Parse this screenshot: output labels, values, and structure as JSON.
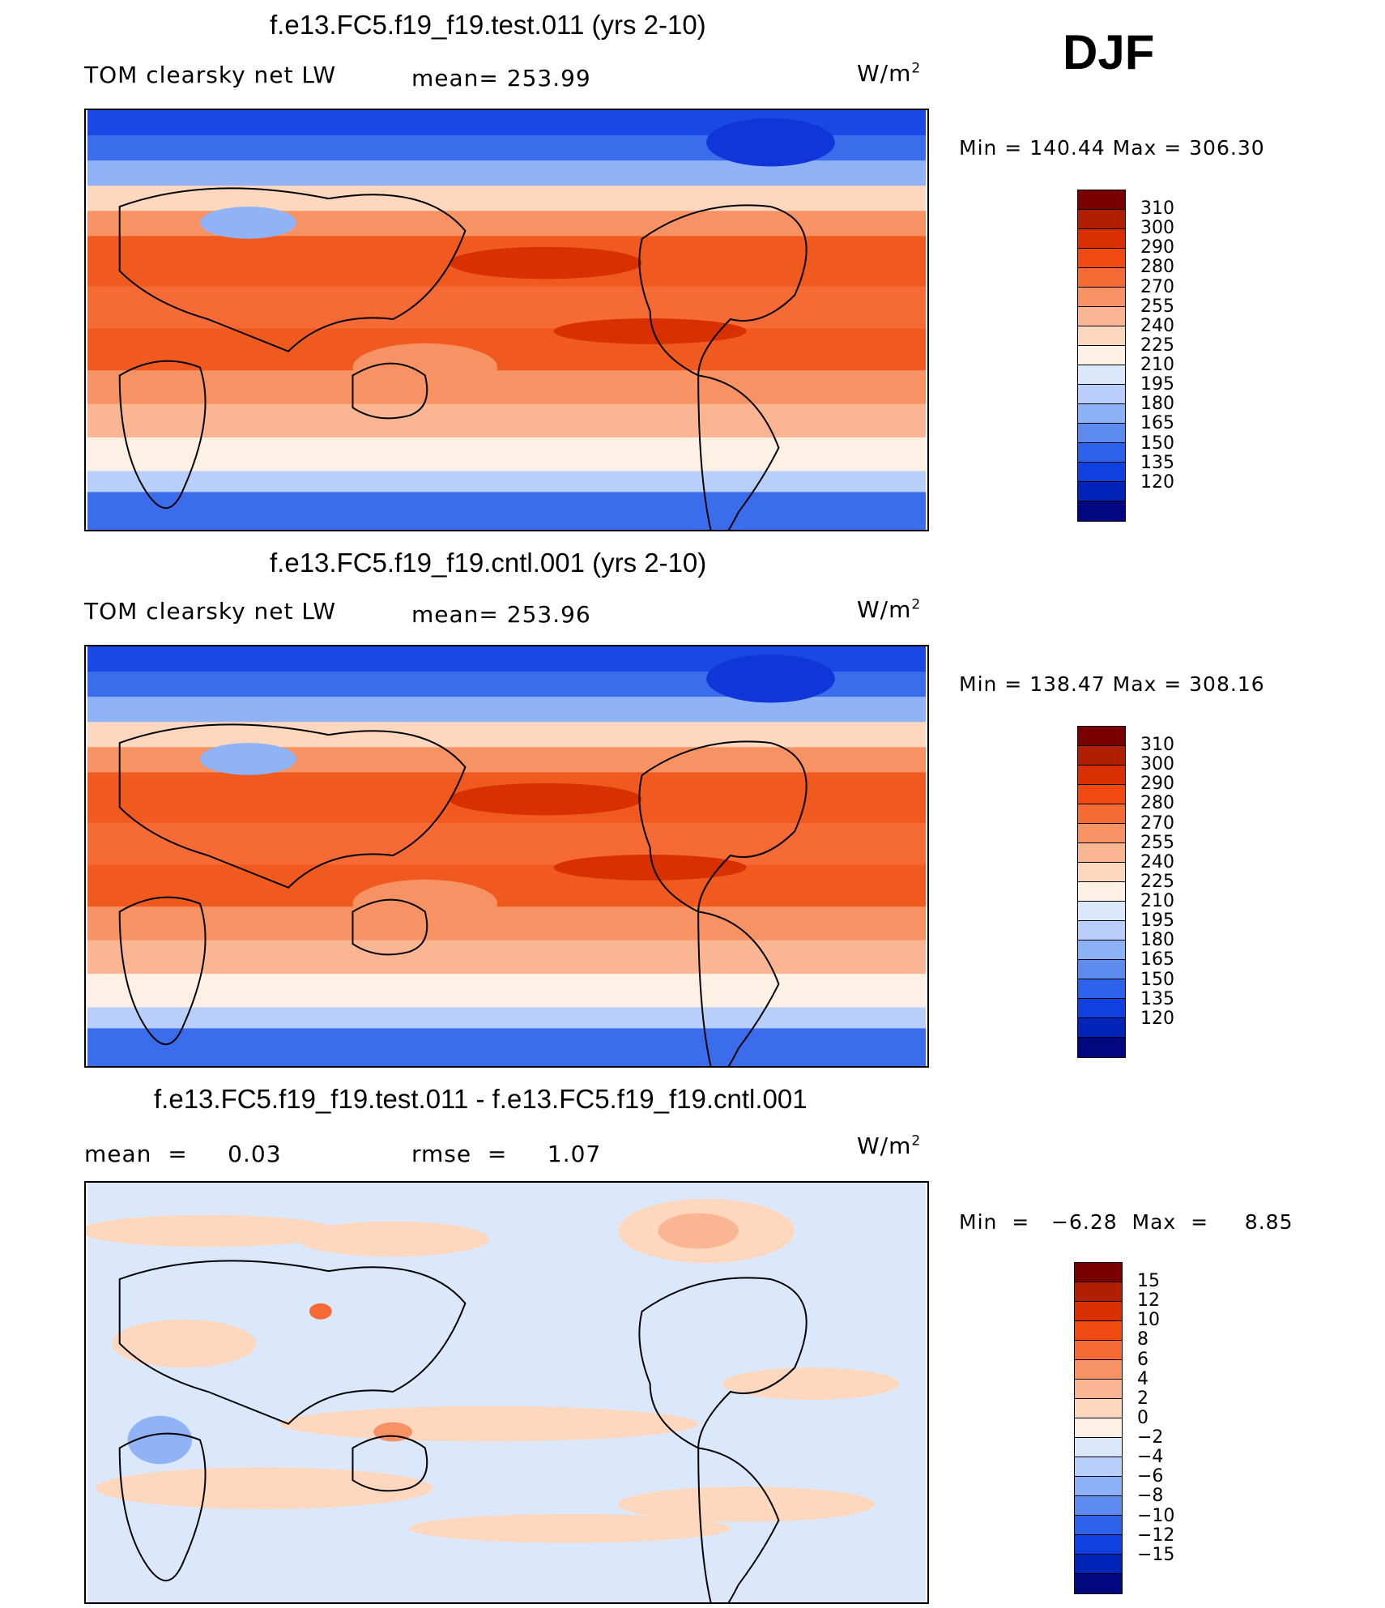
{
  "season": "DJF",
  "panels": [
    {
      "title": "f.e13.FC5.f19_f19.test.011 (yrs 2-10)",
      "left_label": "TOM clearsky net LW",
      "mid_label": "mean= 253.99",
      "units_base": "W/m",
      "units_exp": "2",
      "minmax": "Min  =  140.44  Max  =  306.30",
      "colorbar": {
        "labels": [
          "310",
          "300",
          "290",
          "280",
          "270",
          "255",
          "240",
          "225",
          "210",
          "195",
          "180",
          "165",
          "150",
          "135",
          "120"
        ],
        "colors": [
          "#7a0000",
          "#b02000",
          "#d83000",
          "#f04a10",
          "#f56a35",
          "#f79264",
          "#fab592",
          "#fdd7be",
          "#fdf0e4",
          "#dbe8fb",
          "#b7cffa",
          "#8db1f6",
          "#5d8bf0",
          "#2d62ea",
          "#1041e0",
          "#0024b8",
          "#00087f"
        ]
      }
    },
    {
      "title": "f.e13.FC5.f19_f19.cntl.001 (yrs 2-10)",
      "left_label": "TOM clearsky net LW",
      "mid_label": "mean= 253.96",
      "units_base": "W/m",
      "units_exp": "2",
      "minmax": "Min  =  138.47  Max  =  308.16",
      "colorbar": {
        "labels": [
          "310",
          "300",
          "290",
          "280",
          "270",
          "255",
          "240",
          "225",
          "210",
          "195",
          "180",
          "165",
          "150",
          "135",
          "120"
        ],
        "colors": [
          "#7a0000",
          "#b02000",
          "#d83000",
          "#f04a10",
          "#f56a35",
          "#f79264",
          "#fab592",
          "#fdd7be",
          "#fdf0e4",
          "#dbe8fb",
          "#b7cffa",
          "#8db1f6",
          "#5d8bf0",
          "#2d62ea",
          "#1041e0",
          "#0024b8",
          "#00087f"
        ]
      }
    },
    {
      "title": "f.e13.FC5.f19_f19.test.011 - f.e13.FC5.f19_f19.cntl.001",
      "left_label": "mean  =     0.03",
      "mid_label": "rmse  =     1.07",
      "units_base": "W/m",
      "units_exp": "2",
      "minmax": "Min  =   −6.28  Max  =     8.85",
      "colorbar": {
        "labels": [
          "15",
          "12",
          "10",
          "8",
          "6",
          "4",
          "2",
          "0",
          "−2",
          "−4",
          "−6",
          "−8",
          "−10",
          "−12",
          "−15"
        ],
        "colors": [
          "#7a0000",
          "#b02000",
          "#d83000",
          "#f04a10",
          "#f56a35",
          "#f79264",
          "#fab592",
          "#fdd7be",
          "#fdf0e4",
          "#dbe8fb",
          "#b7cffa",
          "#8db1f6",
          "#5d8bf0",
          "#2d62ea",
          "#1041e0",
          "#0024b8",
          "#00087f"
        ]
      }
    }
  ]
}
